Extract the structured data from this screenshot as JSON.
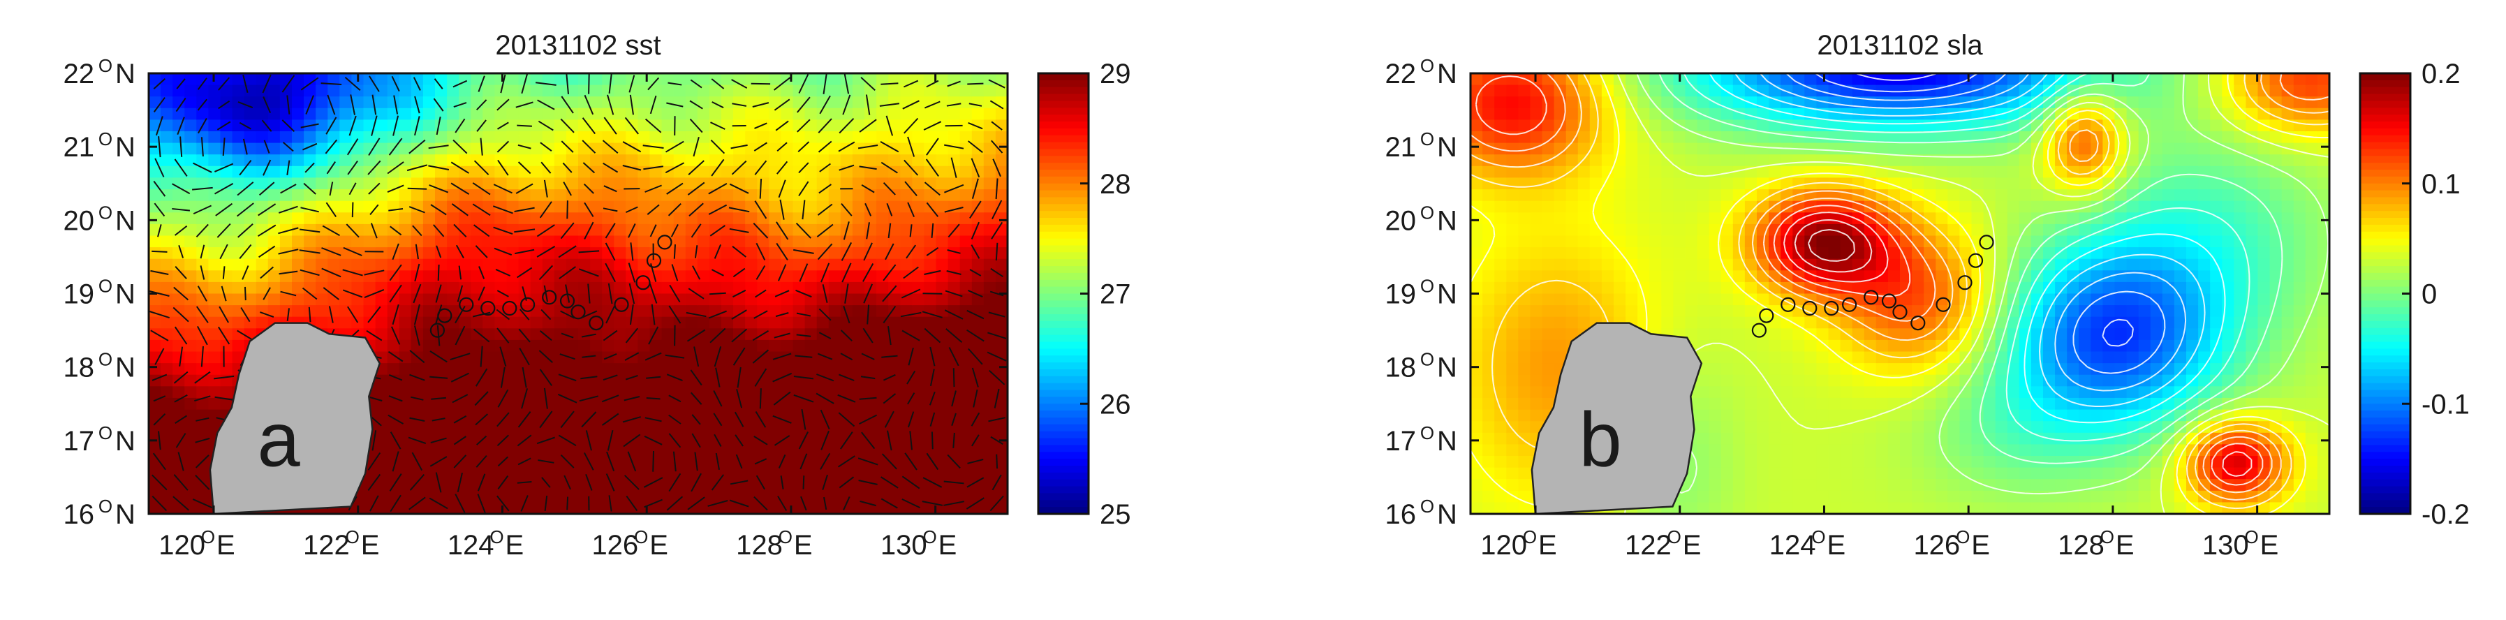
{
  "panels": [
    {
      "id": "a",
      "title": "20131102 sst",
      "panel_label": "a",
      "variable": "sst",
      "colormap": "jet",
      "colorbar": {
        "min": 25,
        "max": 29,
        "ticks": [
          "29",
          "28",
          "27",
          "26",
          "25"
        ]
      },
      "x_ticks": [
        "120",
        "122",
        "124",
        "126",
        "128",
        "130"
      ],
      "y_ticks": [
        "22",
        "21",
        "20",
        "19",
        "18",
        "17",
        "16"
      ],
      "x_range": [
        119.1,
        131.0
      ],
      "y_range": [
        16,
        22
      ],
      "has_current_vectors": true,
      "has_contours": false
    },
    {
      "id": "b",
      "title": "20131102 sla",
      "panel_label": "b",
      "variable": "sla",
      "colormap": "jet",
      "colorbar": {
        "min": -0.2,
        "max": 0.2,
        "ticks": [
          "0.2",
          "0.1",
          "0",
          "-0.1",
          "-0.2"
        ]
      },
      "x_ticks": [
        "120",
        "122",
        "124",
        "126",
        "128",
        "130"
      ],
      "y_ticks": [
        "22",
        "21",
        "20",
        "19",
        "18",
        "17",
        "16"
      ],
      "x_range": [
        119.1,
        131.0
      ],
      "y_range": [
        16,
        22
      ],
      "has_current_vectors": false,
      "has_contours": true,
      "contour_color": "#ffffff"
    }
  ],
  "units": {
    "degree": "O",
    "east": "E",
    "north": "N"
  },
  "land_color": "#b4b4b4",
  "station_track": [
    [
      123.1,
      18.5
    ],
    [
      123.2,
      18.7
    ],
    [
      123.5,
      18.85
    ],
    [
      123.8,
      18.8
    ],
    [
      124.1,
      18.8
    ],
    [
      124.35,
      18.85
    ],
    [
      124.65,
      18.95
    ],
    [
      124.9,
      18.9
    ],
    [
      125.05,
      18.75
    ],
    [
      125.3,
      18.6
    ],
    [
      125.65,
      18.85
    ],
    [
      125.95,
      19.15
    ],
    [
      126.1,
      19.45
    ],
    [
      126.25,
      19.7
    ]
  ]
}
